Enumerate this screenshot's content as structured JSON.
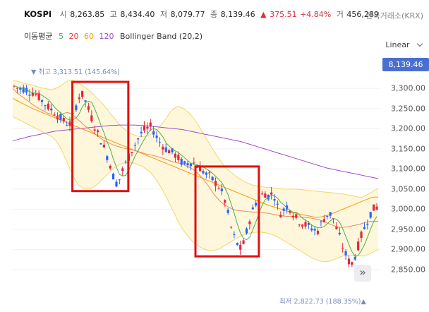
{
  "header": {
    "symbol": "KOSPI",
    "open_label": "시",
    "open_value": "8,263.85",
    "high_label": "고",
    "high_value": "8,434.40",
    "low_label": "저",
    "low_value": "8,079.77",
    "close_label": "종",
    "close_value": "8,139.46",
    "change_arrow": "▲",
    "change_value": "375.51",
    "change_pct": "+4.84%",
    "volume_label": "거",
    "volume_value": "456,289",
    "exchange": "한국거래소(KRX)"
  },
  "legend": {
    "ma_label": "이동평균",
    "ma_periods": [
      "5",
      "20",
      "60",
      "120"
    ],
    "bb_label": "Bollinger Band (20,2)",
    "colors": {
      "ma5": "#4caf50",
      "ma20": "#e53935",
      "ma60": "#ff9800",
      "ma120": "#9c4dcc",
      "bollinger": "#f3d56b",
      "up": "#e0293b",
      "down": "#2962ff",
      "highlight": "#e01010"
    }
  },
  "scale": {
    "mode": "Linear"
  },
  "current_price": "8,139.46",
  "annotations": {
    "high": "▼ 최고 3,313.51 (145.64%)",
    "low": "최저 2,822.73 (188.35%)▲"
  },
  "nav_icon": "double-chevron-right-icon",
  "chart_data": {
    "type": "candlestick",
    "title": "",
    "ylim": [
      2815,
      3330
    ],
    "yticks": [
      "3,300.00",
      "3,250.00",
      "3,200.00",
      "3,150.00",
      "3,100.00",
      "3,050.00",
      "3,000.00",
      "2,950.00",
      "2,900.00",
      "2,850.00"
    ],
    "ytick_values": [
      3300,
      3250,
      3200,
      3150,
      3100,
      3050,
      3000,
      2950,
      2900,
      2850
    ],
    "path_values": [
      3305,
      3300,
      3298,
      3300,
      3292,
      3290,
      3285,
      3275,
      3265,
      3255,
      3248,
      3240,
      3230,
      3222,
      3215,
      3210,
      3230,
      3265,
      3290,
      3275,
      3250,
      3225,
      3200,
      3180,
      3160,
      3135,
      3110,
      3075,
      3060,
      3090,
      3110,
      3130,
      3150,
      3165,
      3185,
      3195,
      3200,
      3205,
      3190,
      3170,
      3160,
      3150,
      3145,
      3140,
      3130,
      3120,
      3110,
      3115,
      3118,
      3112,
      3105,
      3095,
      3085,
      3080,
      3070,
      3060,
      3045,
      3020,
      2980,
      2940,
      2920,
      2900,
      2915,
      2950,
      2985,
      3010,
      3030,
      3035,
      3040,
      3030,
      3045,
      3010,
      2990,
      3000,
      3010,
      2995,
      2980,
      2970,
      2965,
      2960,
      2955,
      2950,
      2945,
      2965,
      2980,
      2990,
      2985,
      2955,
      2930,
      2900,
      2880,
      2860,
      2880,
      2910,
      2940,
      2960,
      2985,
      3000,
      3005
    ],
    "series": [
      {
        "name": "5",
        "color": "#4caf50"
      },
      {
        "name": "20",
        "color": "#e53935"
      },
      {
        "name": "60",
        "color": "#ff9800"
      },
      {
        "name": "120",
        "color": "#9c4dcc"
      },
      {
        "name": "Bollinger Band (20,2)",
        "color": "#f3d56b"
      }
    ],
    "ma20_path": [
      3300,
      3290,
      3282,
      3275,
      3268,
      3260,
      3254,
      3248,
      3243,
      3238,
      3234,
      3230,
      3234,
      3238,
      3240,
      3236,
      3228,
      3219,
      3210,
      3202,
      3194,
      3186,
      3179,
      3172,
      3167,
      3162,
      3158,
      3155,
      3152,
      3150,
      3148,
      3146,
      3143,
      3140,
      3137,
      3135,
      3133,
      3130,
      3127,
      3124,
      3120,
      3117,
      3115,
      3112,
      3108,
      3104,
      3098,
      3090,
      3080,
      3068,
      3055,
      3040,
      3028,
      3018,
      3010,
      3005,
      3000,
      2997,
      2996,
      2995,
      2994,
      2993,
      2993,
      2992,
      2991,
      2990,
      2988,
      2986,
      2984,
      2983,
      2982,
      2982,
      2982,
      2981,
      2980,
      2979,
      2978,
      2976,
      2974,
      2970,
      2966,
      2962,
      2958,
      2955,
      2955,
      2956,
      2958,
      2960,
      2962,
      2965,
      2968,
      2970,
      2970,
      2970
    ],
    "ma60_path": [
      3275,
      3270,
      3265,
      3260,
      3255,
      3250,
      3246,
      3242,
      3238,
      3234,
      3230,
      3226,
      3222,
      3218,
      3214,
      3210,
      3206,
      3202,
      3198,
      3194,
      3190,
      3186,
      3182,
      3178,
      3174,
      3170,
      3166,
      3162,
      3158,
      3154,
      3150,
      3146,
      3142,
      3138,
      3134,
      3130,
      3126,
      3122,
      3118,
      3114,
      3110,
      3106,
      3102,
      3098,
      3094,
      3090,
      3086,
      3082,
      3078,
      3074,
      3070,
      3066,
      3062,
      3058,
      3054,
      3050,
      3046,
      3042,
      3038,
      3034,
      3030,
      3026,
      3022,
      3018,
      3014,
      3010,
      3007,
      3004,
      3001,
      2998,
      2995,
      2992,
      2990,
      2988,
      2986,
      2984,
      2982,
      2980,
      2980,
      2982,
      2985,
      2988,
      2992,
      2996,
      3000,
      3004,
      3008,
      3012,
      3016,
      3020,
      3024,
      3028,
      3030,
      3030
    ],
    "ma120_path": [
      3170,
      3172,
      3175,
      3177,
      3180,
      3182,
      3184,
      3186,
      3188,
      3190,
      3192,
      3194,
      3195,
      3196,
      3197,
      3198,
      3199,
      3200,
      3201,
      3202,
      3203,
      3204,
      3205,
      3206,
      3207,
      3208,
      3208,
      3209,
      3209,
      3209,
      3209,
      3209,
      3208,
      3208,
      3207,
      3206,
      3205,
      3204,
      3203,
      3202,
      3201,
      3200,
      3199,
      3198,
      3196,
      3194,
      3192,
      3190,
      3188,
      3186,
      3184,
      3182,
      3180,
      3178,
      3176,
      3174,
      3172,
      3170,
      3168,
      3165,
      3162,
      3159,
      3156,
      3153,
      3150,
      3147,
      3144,
      3141,
      3138,
      3135,
      3132,
      3129,
      3126,
      3123,
      3120,
      3117,
      3114,
      3111,
      3108,
      3105,
      3102,
      3100,
      3098,
      3096,
      3094,
      3092,
      3090,
      3088,
      3086,
      3084,
      3082,
      3080,
      3078,
      3076
    ],
    "bb_upper": [
      3320,
      3318,
      3315,
      3312,
      3310,
      3308,
      3305,
      3302,
      3300,
      3298,
      3296,
      3300,
      3305,
      3312,
      3318,
      3320,
      3318,
      3312,
      3305,
      3298,
      3290,
      3280,
      3270,
      3260,
      3248,
      3236,
      3224,
      3212,
      3202,
      3194,
      3188,
      3184,
      3181,
      3180,
      3182,
      3186,
      3192,
      3200,
      3212,
      3225,
      3240,
      3250,
      3255,
      3252,
      3246,
      3238,
      3226,
      3212,
      3196,
      3180,
      3164,
      3148,
      3132,
      3118,
      3106,
      3096,
      3088,
      3080,
      3074,
      3068,
      3064,
      3060,
      3058,
      3056,
      3055,
      3054,
      3053,
      3052,
      3051,
      3050,
      3050,
      3050,
      3050,
      3049,
      3048,
      3047,
      3046,
      3045,
      3044,
      3043,
      3042,
      3041,
      3040,
      3039,
      3038,
      3036,
      3034,
      3032,
      3030,
      3030,
      3035,
      3040,
      3046,
      3052
    ],
    "bb_lower": [
      3230,
      3225,
      3220,
      3215,
      3210,
      3205,
      3200,
      3195,
      3190,
      3185,
      3180,
      3170,
      3155,
      3135,
      3112,
      3090,
      3070,
      3058,
      3052,
      3050,
      3052,
      3058,
      3066,
      3076,
      3086,
      3096,
      3104,
      3110,
      3114,
      3116,
      3116,
      3114,
      3110,
      3106,
      3100,
      3092,
      3080,
      3066,
      3050,
      3032,
      3012,
      2992,
      2972,
      2954,
      2940,
      2928,
      2918,
      2910,
      2904,
      2900,
      2898,
      2898,
      2900,
      2904,
      2910,
      2916,
      2922,
      2928,
      2933,
      2937,
      2940,
      2942,
      2943,
      2943,
      2942,
      2940,
      2937,
      2933,
      2928,
      2922,
      2916,
      2910,
      2904,
      2898,
      2892,
      2886,
      2880,
      2876,
      2872,
      2870,
      2870,
      2872,
      2876,
      2880,
      2884,
      2886,
      2886,
      2885,
      2884,
      2884,
      2886,
      2890,
      2895,
      2900
    ],
    "highlight_ranges_value": [
      {
        "from_index": 16,
        "to_index": 31,
        "ymin": 3045,
        "ymax": 3316
      },
      {
        "from_index": 49,
        "to_index": 66,
        "ymin": 2883,
        "ymax": 3106
      }
    ]
  }
}
